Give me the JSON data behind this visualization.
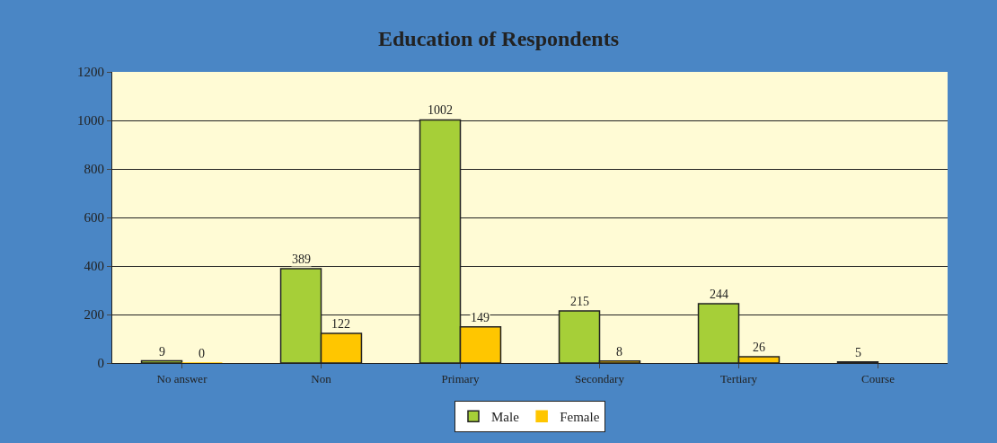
{
  "chart_data": {
    "type": "bar",
    "title": "Education of Respondents",
    "categories": [
      "No answer",
      "Non",
      "Primary",
      "Secondary",
      "Tertiary",
      "Course"
    ],
    "series": [
      {
        "name": "Male",
        "color": "#a6cf38",
        "values": [
          9,
          389,
          1002,
          215,
          244,
          5
        ]
      },
      {
        "name": "Female",
        "color": "#ffc600",
        "values": [
          0,
          122,
          149,
          8,
          26,
          null
        ]
      }
    ],
    "ylim": [
      0,
      1200
    ],
    "yticks": [
      0,
      200,
      400,
      600,
      800,
      1000,
      1200
    ],
    "grid": "y",
    "legend": "bottom",
    "data_labels": true
  }
}
